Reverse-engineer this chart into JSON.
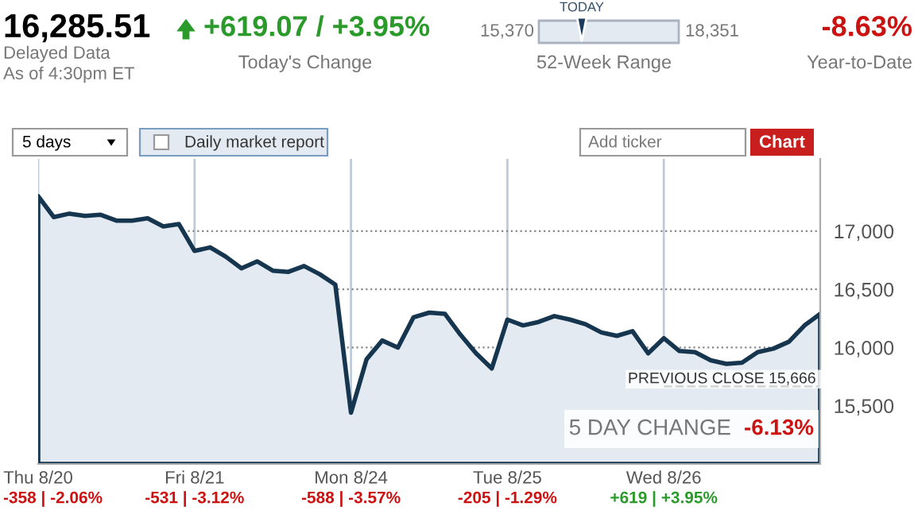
{
  "chart_data": {
    "type": "area",
    "categories": [
      "Thu 8/20",
      null,
      null,
      null,
      null,
      null,
      null,
      null,
      null,
      null,
      "Fri 8/21",
      null,
      null,
      null,
      null,
      null,
      null,
      null,
      null,
      null,
      "Mon 8/24",
      null,
      null,
      null,
      null,
      null,
      null,
      null,
      null,
      null,
      "Tue 8/25",
      null,
      null,
      null,
      null,
      null,
      null,
      null,
      null,
      null,
      "Wed 8/26",
      null,
      null,
      null,
      null,
      null,
      null,
      null,
      null,
      null,
      null
    ],
    "series": [
      {
        "color": "#163650",
        "values": [
          17300,
          17120,
          17150,
          17130,
          17140,
          17090,
          17090,
          17110,
          17040,
          17060,
          16830,
          16860,
          16780,
          16680,
          16740,
          16660,
          16650,
          16700,
          16630,
          16540,
          15440,
          15900,
          16060,
          16000,
          16260,
          16300,
          16290,
          16110,
          15950,
          15820,
          16240,
          16190,
          16220,
          16270,
          16240,
          16200,
          16130,
          16100,
          16140,
          15950,
          16080,
          15970,
          15960,
          15890,
          15860,
          15870,
          15960,
          15990,
          16050,
          16190,
          16290
        ]
      }
    ],
    "ylim": [
      15000,
      17620
    ],
    "yticks": [
      {
        "value": 15500,
        "label": "15,500"
      },
      {
        "value": 16000,
        "label": "16,000"
      },
      {
        "value": 16500,
        "label": "16,500"
      },
      {
        "value": 17000,
        "label": "17,000"
      }
    ],
    "grid": true,
    "ref_lines": [
      {
        "axis": "y",
        "value": 15666,
        "label": "PREVIOUS CLOSE 15,666",
        "line_style": "dashed",
        "color": "#333333"
      }
    ],
    "annotations": [
      "16,285.51",
      "Delayed Data",
      "As of 4:30pm ET",
      "+619.07 / +3.95%",
      "Today's Change",
      "15,370",
      "TODAY",
      "18,351",
      "52-Week Range",
      "-8.63%",
      "Year-to-Date",
      "5 days",
      "Daily market report",
      "Add ticker",
      "Chart",
      "5 DAY CHANGE",
      "-6.13%",
      "-358 | -2.06%",
      "-531 | -3.12%",
      "-588 | -3.57%",
      "-205 | -1.29%",
      "+619 | +3.95%"
    ]
  }
}
